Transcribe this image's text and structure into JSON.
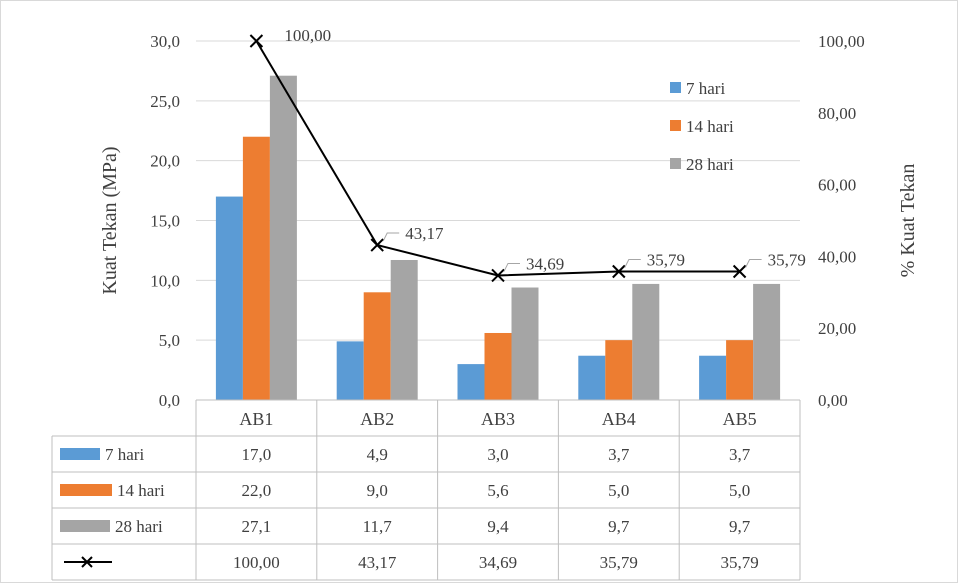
{
  "chart_data": {
    "type": "bar",
    "title": "",
    "categories": [
      "AB1",
      "AB2",
      "AB3",
      "AB4",
      "AB5"
    ],
    "ylabel": "Kuat Tekan (MPa)",
    "y2label": "% Kuat Tekan",
    "ylim": [
      0,
      30
    ],
    "y2lim": [
      0,
      100
    ],
    "yticks": [
      "0,0",
      "5,0",
      "10,0",
      "15,0",
      "20,0",
      "25,0",
      "30,0"
    ],
    "y2ticks": [
      "0,00",
      "20,00",
      "40,00",
      "60,00",
      "80,00",
      "100,00"
    ],
    "grid": true,
    "legend_position": "top-right",
    "series": [
      {
        "name": "7 hari",
        "color": "#5B9BD5",
        "values": [
          17.0,
          4.9,
          3.0,
          3.7,
          3.7
        ],
        "labels": [
          "17,0",
          "4,9",
          "3,0",
          "3,7",
          "3,7"
        ]
      },
      {
        "name": "14 hari",
        "color": "#ED7D31",
        "values": [
          22.0,
          9.0,
          5.6,
          5.0,
          5.0
        ],
        "labels": [
          "22,0",
          "9,0",
          "5,6",
          "5,0",
          "5,0"
        ]
      },
      {
        "name": "28 hari",
        "color": "#A5A5A5",
        "values": [
          27.1,
          11.7,
          9.4,
          9.7,
          9.7
        ],
        "labels": [
          "27,1",
          "11,7",
          "9,4",
          "9,7",
          "9,7"
        ]
      }
    ],
    "line_series": {
      "name": "",
      "axis": "secondary",
      "color": "#000000",
      "marker": "x",
      "values": [
        100.0,
        43.17,
        34.69,
        35.79,
        35.79
      ],
      "labels": [
        "100,00",
        "43,17",
        "34,69",
        "35,79",
        "35,79"
      ]
    }
  }
}
